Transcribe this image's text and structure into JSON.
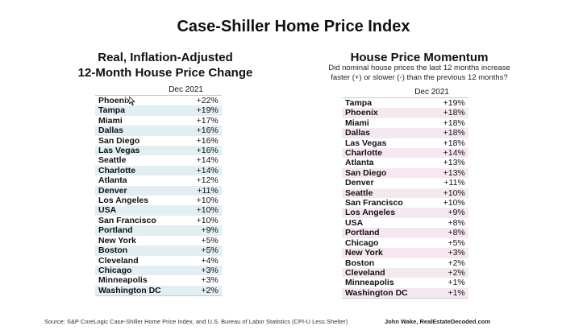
{
  "title": "Case-Shiller Home Price Index",
  "chart_data": [
    {
      "type": "table",
      "title_line1": "Real, Inflation-Adjusted",
      "title_line2": "12-Month House Price Change",
      "column": "Dec 2021",
      "rows": [
        {
          "city": "Phoenix",
          "value": "+22%"
        },
        {
          "city": "Tampa",
          "value": "+19%"
        },
        {
          "city": "Miami",
          "value": "+17%"
        },
        {
          "city": "Dallas",
          "value": "+16%"
        },
        {
          "city": "San Diego",
          "value": "+16%"
        },
        {
          "city": "Las Vegas",
          "value": "+16%"
        },
        {
          "city": "Seattle",
          "value": "+14%"
        },
        {
          "city": "Charlotte",
          "value": "+14%"
        },
        {
          "city": "Atlanta",
          "value": "+12%"
        },
        {
          "city": "Denver",
          "value": "+11%"
        },
        {
          "city": "Los Angeles",
          "value": "+10%"
        },
        {
          "city": "USA",
          "value": "+10%"
        },
        {
          "city": "San Francisco",
          "value": "+10%"
        },
        {
          "city": "Portland",
          "value": "+9%"
        },
        {
          "city": "New York",
          "value": "+5%"
        },
        {
          "city": "Boston",
          "value": "+5%"
        },
        {
          "city": "Cleveland",
          "value": "+4%"
        },
        {
          "city": "Chicago",
          "value": "+3%"
        },
        {
          "city": "Minneapolis",
          "value": "+3%"
        },
        {
          "city": "Washington DC",
          "value": "+2%"
        }
      ]
    },
    {
      "type": "table",
      "title": "House Price Momentum",
      "note_line1": "Did nominal house prices the last 12 months increase",
      "note_line2": "faster (+) or slower (-) than the previous 12 months?",
      "column": "Dec 2021",
      "rows": [
        {
          "city": "Tampa",
          "value": "+19%"
        },
        {
          "city": "Phoenix",
          "value": "+18%"
        },
        {
          "city": "Miami",
          "value": "+18%"
        },
        {
          "city": "Dallas",
          "value": "+18%"
        },
        {
          "city": "Las Vegas",
          "value": "+18%"
        },
        {
          "city": "Charlotte",
          "value": "+14%"
        },
        {
          "city": "Atlanta",
          "value": "+13%"
        },
        {
          "city": "San Diego",
          "value": "+13%"
        },
        {
          "city": "Denver",
          "value": "+11%"
        },
        {
          "city": "Seattle",
          "value": "+10%"
        },
        {
          "city": "San Francisco",
          "value": "+10%"
        },
        {
          "city": "Los Angeles",
          "value": "+9%"
        },
        {
          "city": "USA",
          "value": "+8%"
        },
        {
          "city": "Portland",
          "value": "+8%"
        },
        {
          "city": "Chicago",
          "value": "+5%"
        },
        {
          "city": "New York",
          "value": "+3%"
        },
        {
          "city": "Boston",
          "value": "+2%"
        },
        {
          "city": "Cleveland",
          "value": "+2%"
        },
        {
          "city": "Minneapolis",
          "value": "+1%"
        },
        {
          "city": "Washington DC",
          "value": "+1%"
        }
      ]
    }
  ],
  "footer": {
    "source": "Source: S&P CoreLogic Case-Shiller Home Price Index, and U.S. Bureau of Labor Statistics (CPI-U Less Shelter)",
    "credit": "John Wake, RealEstateDecoded.com"
  },
  "colors": {
    "left_band": "#e1eff2",
    "right_band": "#f7e7f1"
  },
  "icons": {
    "cursor": "mouse-pointer-icon"
  }
}
